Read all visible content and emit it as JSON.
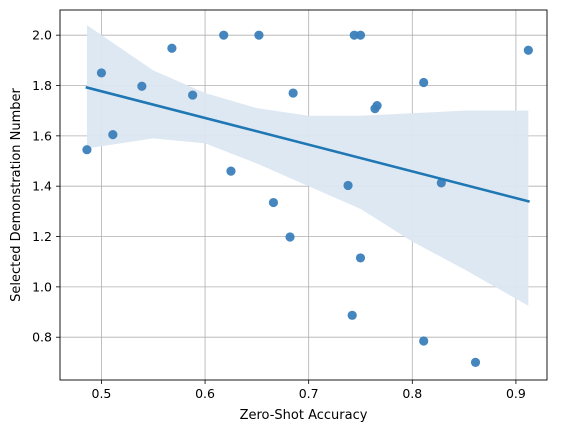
{
  "chart_data": {
    "type": "scatter",
    "title": "",
    "xlabel": "Zero-Shot Accuracy",
    "ylabel": "Selected Demonstration Number",
    "xlim": [
      0.46,
      0.93
    ],
    "ylim": [
      0.63,
      2.1
    ],
    "xticks": [
      0.5,
      0.6,
      0.7,
      0.8,
      0.9
    ],
    "xtick_labels": [
      "0.5",
      "0.6",
      "0.7",
      "0.8",
      "0.9"
    ],
    "yticks": [
      0.8,
      1.0,
      1.2,
      1.4,
      1.6,
      1.8,
      2.0
    ],
    "ytick_labels": [
      "0.8",
      "1.0",
      "1.2",
      "1.4",
      "1.6",
      "1.8",
      "2.0"
    ],
    "grid": true,
    "point_color": "#3b80ba",
    "line_color": "#1f77b4",
    "band_color": "#dce7f2",
    "points": [
      {
        "x": 0.486,
        "y": 1.545
      },
      {
        "x": 0.5,
        "y": 1.85
      },
      {
        "x": 0.511,
        "y": 1.605
      },
      {
        "x": 0.539,
        "y": 1.797
      },
      {
        "x": 0.568,
        "y": 1.948
      },
      {
        "x": 0.588,
        "y": 1.762
      },
      {
        "x": 0.618,
        "y": 2.0
      },
      {
        "x": 0.625,
        "y": 1.46
      },
      {
        "x": 0.652,
        "y": 2.0
      },
      {
        "x": 0.666,
        "y": 1.335
      },
      {
        "x": 0.682,
        "y": 1.198
      },
      {
        "x": 0.685,
        "y": 1.77
      },
      {
        "x": 0.738,
        "y": 1.403
      },
      {
        "x": 0.742,
        "y": 0.887
      },
      {
        "x": 0.744,
        "y": 2.0
      },
      {
        "x": 0.75,
        "y": 2.0
      },
      {
        "x": 0.75,
        "y": 1.115
      },
      {
        "x": 0.764,
        "y": 1.708
      },
      {
        "x": 0.766,
        "y": 1.72
      },
      {
        "x": 0.811,
        "y": 1.812
      },
      {
        "x": 0.811,
        "y": 0.785
      },
      {
        "x": 0.828,
        "y": 1.413
      },
      {
        "x": 0.861,
        "y": 0.7
      },
      {
        "x": 0.912,
        "y": 1.94
      }
    ],
    "regression": {
      "x": [
        0.486,
        0.912
      ],
      "y": [
        1.792,
        1.34
      ]
    },
    "confidence_band": {
      "x": [
        0.486,
        0.55,
        0.6,
        0.65,
        0.7,
        0.75,
        0.8,
        0.85,
        0.912
      ],
      "upper": [
        2.04,
        1.86,
        1.77,
        1.71,
        1.68,
        1.68,
        1.69,
        1.7,
        1.7
      ],
      "lower": [
        1.55,
        1.59,
        1.57,
        1.49,
        1.4,
        1.31,
        1.18,
        1.07,
        0.925
      ]
    }
  }
}
